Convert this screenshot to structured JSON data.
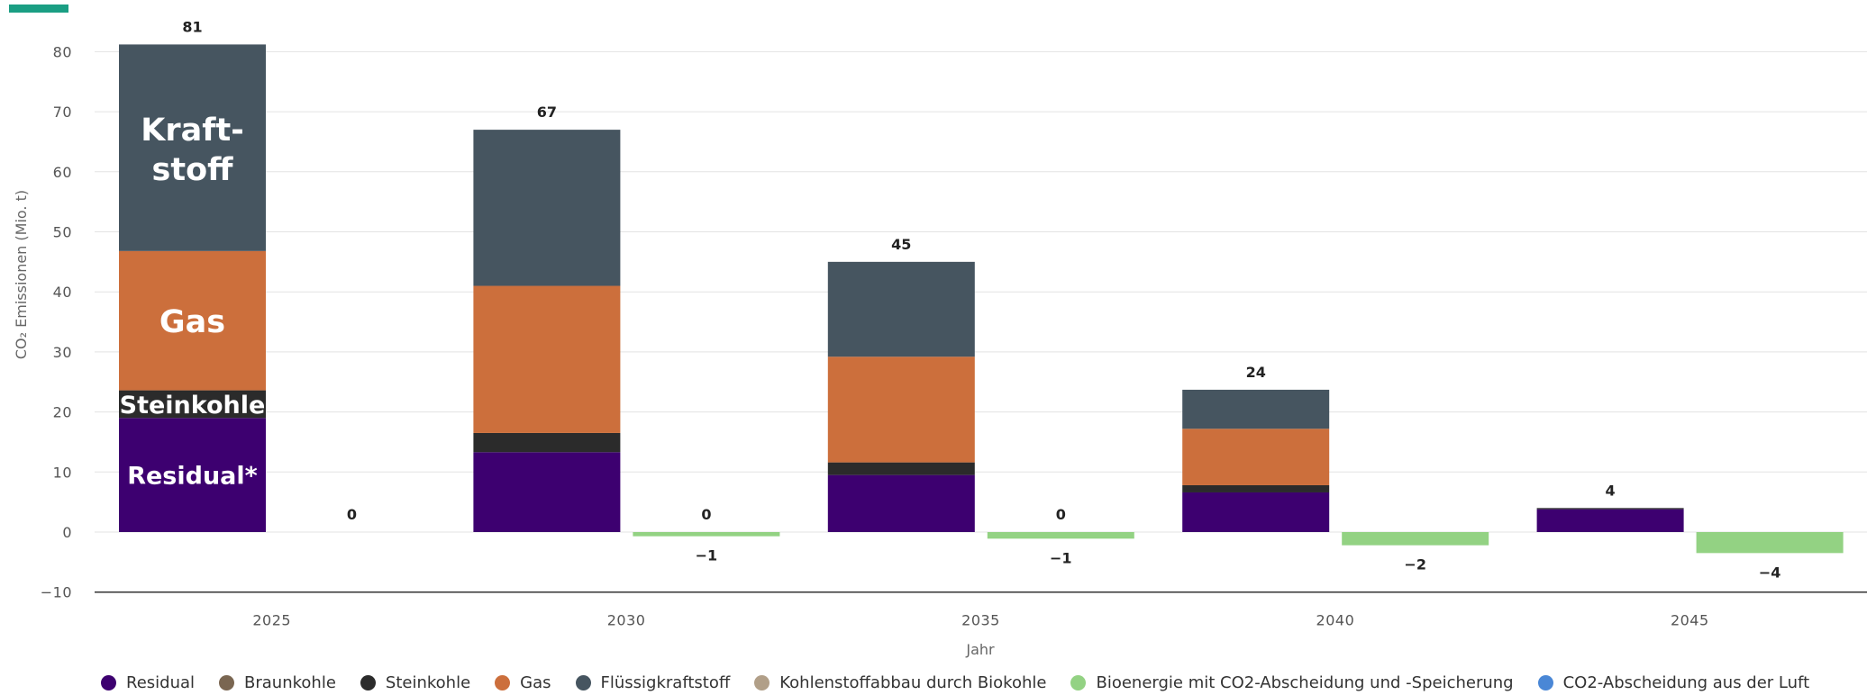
{
  "colors": {
    "accent": "#1a9e83",
    "grid": "#e3e3e3",
    "axis": "#333333",
    "Residual": "#3d0070",
    "Braunkohle": "#7a6651",
    "Steinkohle": "#2b2b2b",
    "Gas": "#cc6f3c",
    "Flüssigkraftstoff": "#465560",
    "Kohlenstoffabbau durch Biokohle": "#b19f88",
    "Bioenergie mit CO2-Abscheidung und -Speicherung": "#93d283",
    "CO2-Abscheidung aus der Luft": "#4a87d6"
  },
  "chart_data": {
    "type": "bar",
    "stacked": true,
    "categories": [
      "2025",
      "2030",
      "2035",
      "2040",
      "2045"
    ],
    "xlabel": "Jahr",
    "ylabel": "CO₂ Emissionen (Mio. t)",
    "ylim": [
      -10,
      80
    ],
    "yticks": [
      -10,
      0,
      10,
      20,
      30,
      40,
      50,
      60,
      70,
      80
    ],
    "grid": true,
    "legend_position": "bottom",
    "series": [
      {
        "name": "Residual",
        "stack": "emissions",
        "values": [
          19,
          13.3,
          9.5,
          6.6,
          3.8
        ]
      },
      {
        "name": "Braunkohle",
        "stack": "emissions",
        "values": [
          0,
          0,
          0,
          0,
          0
        ]
      },
      {
        "name": "Steinkohle",
        "stack": "emissions",
        "values": [
          4.6,
          3.2,
          2.1,
          1.2,
          0.2
        ]
      },
      {
        "name": "Gas",
        "stack": "emissions",
        "values": [
          23.2,
          24.5,
          17.6,
          9.4,
          0
        ]
      },
      {
        "name": "Flüssigkraftstoff",
        "stack": "emissions",
        "values": [
          34.4,
          26,
          15.8,
          6.5,
          0
        ]
      },
      {
        "name": "Kohlenstoffabbau durch Biokohle",
        "stack": "removals",
        "values": [
          0,
          0,
          0,
          0,
          0
        ]
      },
      {
        "name": "Bioenergie mit CO2-Abscheidung und -Speicherung",
        "stack": "removals",
        "values": [
          0,
          -0.7,
          -1.1,
          -2.2,
          -3.5
        ]
      },
      {
        "name": "CO2-Abscheidung aus der Luft",
        "stack": "removals",
        "values": [
          0,
          0,
          0,
          0,
          0
        ]
      }
    ],
    "totals": {
      "emissions": [
        "81",
        "67",
        "45",
        "24",
        "4"
      ],
      "removals_top": [
        "0",
        "0",
        "0",
        "",
        ""
      ],
      "removals_bottom": [
        "",
        "−1",
        "−1",
        "−2",
        "−4"
      ]
    },
    "inline_labels": {
      "Residual": "Residual*",
      "Steinkohle": "Steinkohle",
      "Gas": "Gas",
      "Flüssigkraftstoff_line1": "Kraft-",
      "Flüssigkraftstoff_line2": "stoff"
    }
  }
}
